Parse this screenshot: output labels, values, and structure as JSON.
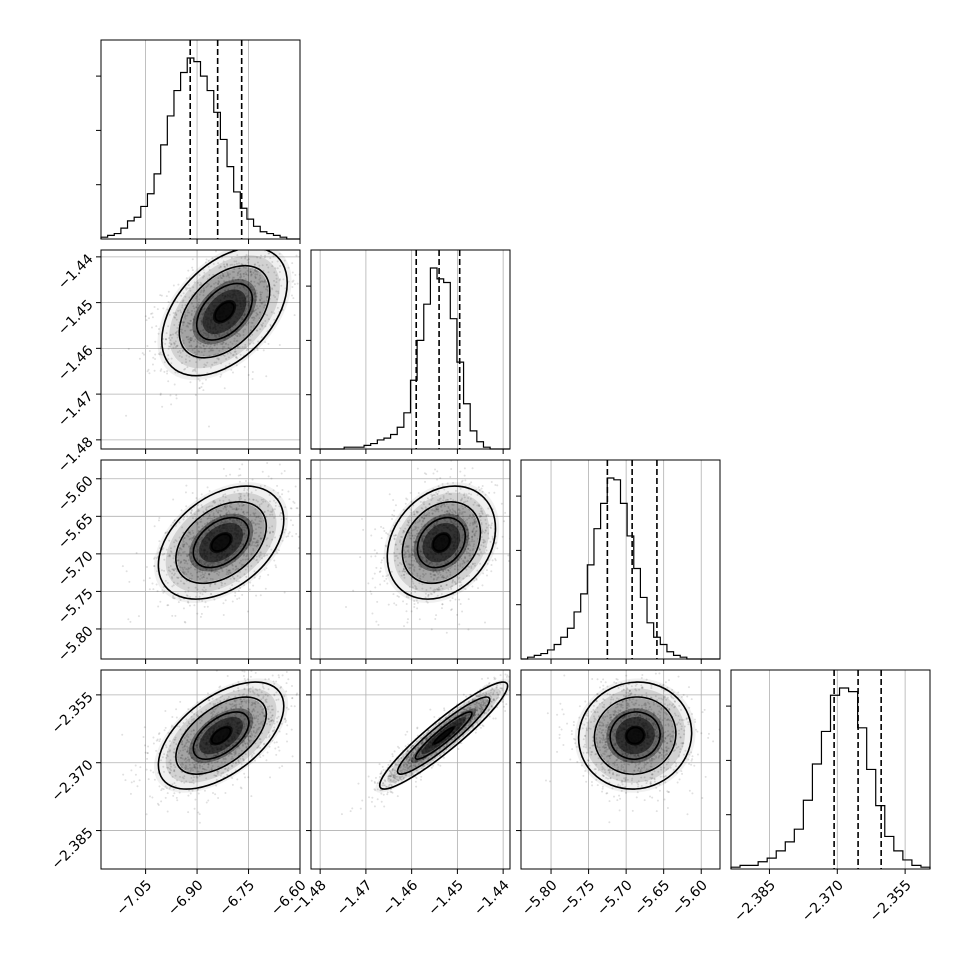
{
  "chart_data": {
    "type": "corner",
    "parameters": [
      {
        "range": [
          -7.18,
          -6.6
        ],
        "ticks": [
          -7.05,
          -6.9,
          -6.75,
          -6.6
        ],
        "tick_labels": [
          "−7.05",
          "−6.90",
          "−6.75",
          "−6.60"
        ],
        "median": -6.84,
        "quantiles": [
          -6.92,
          -6.84,
          -6.77
        ],
        "histogram": [
          0.01,
          0.02,
          0.03,
          0.06,
          0.1,
          0.12,
          0.18,
          0.25,
          0.36,
          0.52,
          0.68,
          0.82,
          0.92,
          1.0,
          0.98,
          0.9,
          0.82,
          0.7,
          0.55,
          0.4,
          0.26,
          0.17,
          0.11,
          0.07,
          0.04,
          0.03,
          0.02,
          0.01,
          0.0,
          0.0
        ]
      },
      {
        "range": [
          -1.482,
          -1.4385
        ],
        "ticks": [
          -1.48,
          -1.47,
          -1.46,
          -1.45,
          -1.44
        ],
        "tick_labels": [
          "−1.48",
          "−1.47",
          "−1.46",
          "−1.45",
          "−1.44"
        ],
        "median": -1.454,
        "quantiles": [
          -1.459,
          -1.454,
          -1.4495
        ],
        "histogram": [
          0.0,
          0.0,
          0.0,
          0.0,
          0.0,
          0.01,
          0.01,
          0.01,
          0.02,
          0.03,
          0.05,
          0.06,
          0.08,
          0.12,
          0.2,
          0.38,
          0.6,
          0.8,
          1.0,
          0.94,
          0.92,
          0.72,
          0.48,
          0.25,
          0.1,
          0.04,
          0.01,
          0.0,
          0.0,
          0.0
        ]
      },
      {
        "range": [
          -5.84,
          -5.575
        ],
        "ticks": [
          -5.8,
          -5.75,
          -5.7,
          -5.65,
          -5.6
        ],
        "tick_labels": [
          "−5.80",
          "−5.75",
          "−5.70",
          "−5.65",
          "−5.60"
        ],
        "median": -5.692,
        "quantiles": [
          -5.725,
          -5.692,
          -5.659
        ],
        "histogram": [
          0.0,
          0.01,
          0.02,
          0.03,
          0.05,
          0.08,
          0.12,
          0.17,
          0.26,
          0.36,
          0.52,
          0.72,
          0.86,
          1.0,
          0.99,
          0.86,
          0.68,
          0.5,
          0.34,
          0.2,
          0.12,
          0.08,
          0.04,
          0.02,
          0.01,
          0.0,
          0.0,
          0.0,
          0.0,
          0.0
        ]
      },
      {
        "range": [
          -2.3935,
          -2.3495
        ],
        "ticks": [
          -2.385,
          -2.37,
          -2.355
        ],
        "tick_labels": [
          "−2.385",
          "−2.370",
          "−2.355"
        ],
        "median": -2.3654,
        "quantiles": [
          -2.3707,
          -2.3654,
          -2.3603
        ],
        "histogram": [
          0.01,
          0.02,
          0.02,
          0.04,
          0.06,
          0.1,
          0.15,
          0.22,
          0.38,
          0.58,
          0.76,
          0.96,
          1.0,
          0.98,
          0.78,
          0.55,
          0.35,
          0.18,
          0.1,
          0.05,
          0.02,
          0.01
        ]
      }
    ],
    "pairs": [
      {
        "x": 0,
        "y": 1,
        "mean": [
          -6.82,
          -1.452
        ],
        "sd": [
          0.085,
          0.0065
        ],
        "rho": 0.45
      },
      {
        "x": 0,
        "y": 2,
        "mean": [
          -6.83,
          -5.685
        ],
        "sd": [
          0.085,
          0.035
        ],
        "rho": 0.4
      },
      {
        "x": 1,
        "y": 2,
        "mean": [
          -1.4535,
          -5.685
        ],
        "sd": [
          0.0055,
          0.035
        ],
        "rho": 0.25
      },
      {
        "x": 0,
        "y": 3,
        "mean": [
          -6.83,
          -2.364
        ],
        "sd": [
          0.085,
          0.0055
        ],
        "rho": 0.55
      },
      {
        "x": 1,
        "y": 3,
        "mean": [
          -1.453,
          -2.364
        ],
        "sd": [
          0.0065,
          0.0055
        ],
        "rho": 0.93
      },
      {
        "x": 2,
        "y": 3,
        "mean": [
          -5.688,
          -2.364
        ],
        "sd": [
          0.035,
          0.0055
        ],
        "rho": 0.05
      }
    ],
    "grid": true
  }
}
